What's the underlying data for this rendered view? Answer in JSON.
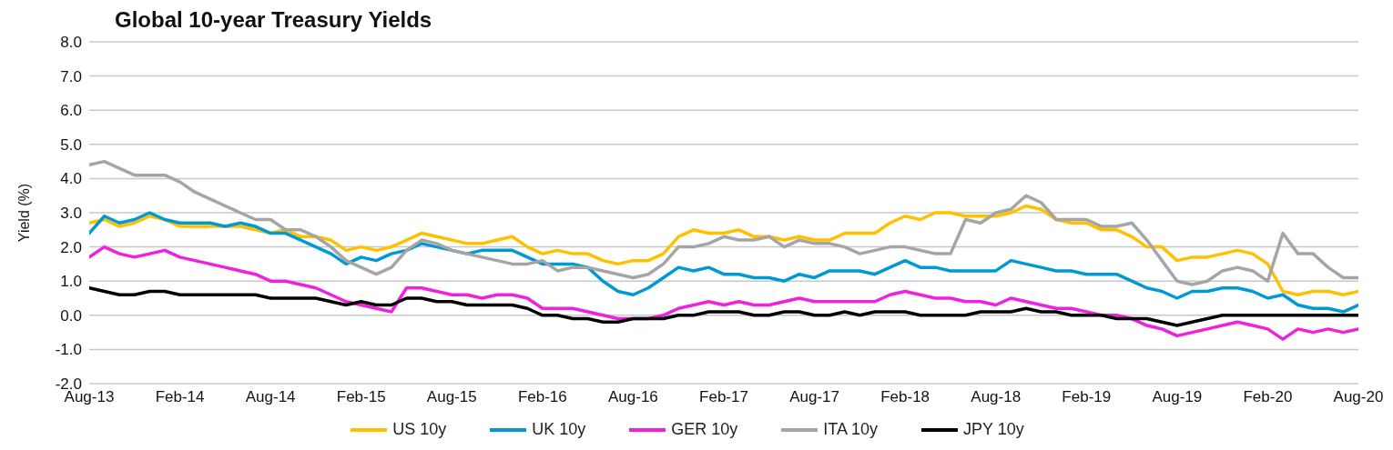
{
  "chart_data": {
    "type": "line",
    "title": "Global 10-year Treasury Yields",
    "ylabel": "Yield (%)",
    "x": [
      "2013-08",
      "2013-09",
      "2013-10",
      "2013-11",
      "2013-12",
      "2014-01",
      "2014-02",
      "2014-03",
      "2014-04",
      "2014-05",
      "2014-06",
      "2014-07",
      "2014-08",
      "2014-09",
      "2014-10",
      "2014-11",
      "2014-12",
      "2015-01",
      "2015-02",
      "2015-03",
      "2015-04",
      "2015-05",
      "2015-06",
      "2015-07",
      "2015-08",
      "2015-09",
      "2015-10",
      "2015-11",
      "2015-12",
      "2016-01",
      "2016-02",
      "2016-03",
      "2016-04",
      "2016-05",
      "2016-06",
      "2016-07",
      "2016-08",
      "2016-09",
      "2016-10",
      "2016-11",
      "2016-12",
      "2017-01",
      "2017-02",
      "2017-03",
      "2017-04",
      "2017-05",
      "2017-06",
      "2017-07",
      "2017-08",
      "2017-09",
      "2017-10",
      "2017-11",
      "2017-12",
      "2018-01",
      "2018-02",
      "2018-03",
      "2018-04",
      "2018-05",
      "2018-06",
      "2018-07",
      "2018-08",
      "2018-09",
      "2018-10",
      "2018-11",
      "2018-12",
      "2019-01",
      "2019-02",
      "2019-03",
      "2019-04",
      "2019-05",
      "2019-06",
      "2019-07",
      "2019-08",
      "2019-09",
      "2019-10",
      "2019-11",
      "2019-12",
      "2020-01",
      "2020-02",
      "2020-03",
      "2020-04",
      "2020-05",
      "2020-06",
      "2020-07",
      "2020-08"
    ],
    "series": [
      {
        "name": "US 10y",
        "color": "#ffc000",
        "values": [
          2.7,
          2.8,
          2.6,
          2.7,
          2.9,
          2.8,
          2.6,
          2.6,
          2.6,
          2.6,
          2.6,
          2.5,
          2.4,
          2.5,
          2.3,
          2.3,
          2.2,
          1.9,
          2.0,
          1.9,
          2.0,
          2.2,
          2.4,
          2.3,
          2.2,
          2.1,
          2.1,
          2.2,
          2.3,
          2.0,
          1.8,
          1.9,
          1.8,
          1.8,
          1.6,
          1.5,
          1.6,
          1.6,
          1.8,
          2.3,
          2.5,
          2.4,
          2.4,
          2.5,
          2.3,
          2.3,
          2.2,
          2.3,
          2.2,
          2.2,
          2.4,
          2.4,
          2.4,
          2.7,
          2.9,
          2.8,
          3.0,
          3.0,
          2.9,
          2.9,
          2.9,
          3.0,
          3.2,
          3.1,
          2.8,
          2.7,
          2.7,
          2.5,
          2.5,
          2.3,
          2.0,
          2.0,
          1.6,
          1.7,
          1.7,
          1.8,
          1.9,
          1.8,
          1.5,
          0.7,
          0.6,
          0.7,
          0.7,
          0.6,
          0.7
        ]
      },
      {
        "name": "UK 10y",
        "color": "#0099d4",
        "values": [
          2.4,
          2.9,
          2.7,
          2.8,
          3.0,
          2.8,
          2.7,
          2.7,
          2.7,
          2.6,
          2.7,
          2.6,
          2.4,
          2.4,
          2.2,
          2.0,
          1.8,
          1.5,
          1.7,
          1.6,
          1.8,
          1.9,
          2.1,
          2.0,
          1.9,
          1.8,
          1.9,
          1.9,
          1.9,
          1.7,
          1.5,
          1.5,
          1.5,
          1.4,
          1.0,
          0.7,
          0.6,
          0.8,
          1.1,
          1.4,
          1.3,
          1.4,
          1.2,
          1.2,
          1.1,
          1.1,
          1.0,
          1.2,
          1.1,
          1.3,
          1.3,
          1.3,
          1.2,
          1.4,
          1.6,
          1.4,
          1.4,
          1.3,
          1.3,
          1.3,
          1.3,
          1.6,
          1.5,
          1.4,
          1.3,
          1.3,
          1.2,
          1.2,
          1.2,
          1.0,
          0.8,
          0.7,
          0.5,
          0.7,
          0.7,
          0.8,
          0.8,
          0.7,
          0.5,
          0.6,
          0.3,
          0.2,
          0.2,
          0.1,
          0.3
        ]
      },
      {
        "name": "GER 10y",
        "color": "#f020e0",
        "values": [
          1.7,
          2.0,
          1.8,
          1.7,
          1.8,
          1.9,
          1.7,
          1.6,
          1.5,
          1.4,
          1.3,
          1.2,
          1.0,
          1.0,
          0.9,
          0.8,
          0.6,
          0.4,
          0.3,
          0.2,
          0.1,
          0.8,
          0.8,
          0.7,
          0.6,
          0.6,
          0.5,
          0.6,
          0.6,
          0.5,
          0.2,
          0.2,
          0.2,
          0.1,
          0.0,
          -0.1,
          -0.1,
          -0.1,
          0.0,
          0.2,
          0.3,
          0.4,
          0.3,
          0.4,
          0.3,
          0.3,
          0.4,
          0.5,
          0.4,
          0.4,
          0.4,
          0.4,
          0.4,
          0.6,
          0.7,
          0.6,
          0.5,
          0.5,
          0.4,
          0.4,
          0.3,
          0.5,
          0.4,
          0.3,
          0.2,
          0.2,
          0.1,
          0.0,
          0.0,
          -0.1,
          -0.3,
          -0.4,
          -0.6,
          -0.5,
          -0.4,
          -0.3,
          -0.2,
          -0.3,
          -0.4,
          -0.7,
          -0.4,
          -0.5,
          -0.4,
          -0.5,
          -0.4
        ]
      },
      {
        "name": "ITA 10y",
        "color": "#a5a5a5",
        "values": [
          4.4,
          4.5,
          4.3,
          4.1,
          4.1,
          4.1,
          3.9,
          3.6,
          3.4,
          3.2,
          3.0,
          2.8,
          2.8,
          2.5,
          2.5,
          2.3,
          2.0,
          1.6,
          1.4,
          1.2,
          1.4,
          1.9,
          2.2,
          2.1,
          1.9,
          1.8,
          1.7,
          1.6,
          1.5,
          1.5,
          1.6,
          1.3,
          1.4,
          1.4,
          1.3,
          1.2,
          1.1,
          1.2,
          1.5,
          2.0,
          2.0,
          2.1,
          2.3,
          2.2,
          2.2,
          2.3,
          2.0,
          2.2,
          2.1,
          2.1,
          2.0,
          1.8,
          1.9,
          2.0,
          2.0,
          1.9,
          1.8,
          1.8,
          2.8,
          2.7,
          3.0,
          3.1,
          3.5,
          3.3,
          2.8,
          2.8,
          2.8,
          2.6,
          2.6,
          2.7,
          2.2,
          1.6,
          1.0,
          0.9,
          1.0,
          1.3,
          1.4,
          1.3,
          1.0,
          2.4,
          1.8,
          1.8,
          1.4,
          1.1,
          1.1
        ]
      },
      {
        "name": "JPY 10y",
        "color": "#000000",
        "values": [
          0.8,
          0.7,
          0.6,
          0.6,
          0.7,
          0.7,
          0.6,
          0.6,
          0.6,
          0.6,
          0.6,
          0.6,
          0.5,
          0.5,
          0.5,
          0.5,
          0.4,
          0.3,
          0.4,
          0.3,
          0.3,
          0.5,
          0.5,
          0.4,
          0.4,
          0.3,
          0.3,
          0.3,
          0.3,
          0.2,
          0.0,
          0.0,
          -0.1,
          -0.1,
          -0.2,
          -0.2,
          -0.1,
          -0.1,
          -0.1,
          0.0,
          0.0,
          0.1,
          0.1,
          0.1,
          0.0,
          0.0,
          0.1,
          0.1,
          0.0,
          0.0,
          0.1,
          0.0,
          0.1,
          0.1,
          0.1,
          0.0,
          0.0,
          0.0,
          0.0,
          0.1,
          0.1,
          0.1,
          0.2,
          0.1,
          0.1,
          0.0,
          0.0,
          0.0,
          -0.1,
          -0.1,
          -0.1,
          -0.2,
          -0.3,
          -0.2,
          -0.1,
          0.0,
          0.0,
          0.0,
          0.0,
          0.0,
          0.0,
          0.0,
          0.0,
          0.0,
          0.0
        ]
      }
    ],
    "xlim": [
      "2013-08",
      "2020-08"
    ],
    "xticks": [
      {
        "value": "2013-08",
        "label": "Aug-13"
      },
      {
        "value": "2014-02",
        "label": "Feb-14"
      },
      {
        "value": "2014-08",
        "label": "Aug-14"
      },
      {
        "value": "2015-02",
        "label": "Feb-15"
      },
      {
        "value": "2015-08",
        "label": "Aug-15"
      },
      {
        "value": "2016-02",
        "label": "Feb-16"
      },
      {
        "value": "2016-08",
        "label": "Aug-16"
      },
      {
        "value": "2017-02",
        "label": "Feb-17"
      },
      {
        "value": "2017-08",
        "label": "Aug-17"
      },
      {
        "value": "2018-02",
        "label": "Feb-18"
      },
      {
        "value": "2018-08",
        "label": "Aug-18"
      },
      {
        "value": "2019-02",
        "label": "Feb-19"
      },
      {
        "value": "2019-08",
        "label": "Aug-19"
      },
      {
        "value": "2020-02",
        "label": "Feb-20"
      },
      {
        "value": "2020-08",
        "label": "Aug-20"
      }
    ],
    "ylim": [
      -2,
      8
    ],
    "yticks": [
      {
        "value": -2,
        "label": "-2.0"
      },
      {
        "value": -1,
        "label": "-1.0"
      },
      {
        "value": 0,
        "label": "0.0"
      },
      {
        "value": 1,
        "label": "1.0"
      },
      {
        "value": 2,
        "label": "2.0"
      },
      {
        "value": 3,
        "label": "3.0"
      },
      {
        "value": 4,
        "label": "4.0"
      },
      {
        "value": 5,
        "label": "5.0"
      },
      {
        "value": 6,
        "label": "6.0"
      },
      {
        "value": 7,
        "label": "7.0"
      },
      {
        "value": 8,
        "label": "8.0"
      }
    ],
    "grid": "y",
    "legend": "bottom",
    "marker": "none",
    "line_style": "solid"
  }
}
